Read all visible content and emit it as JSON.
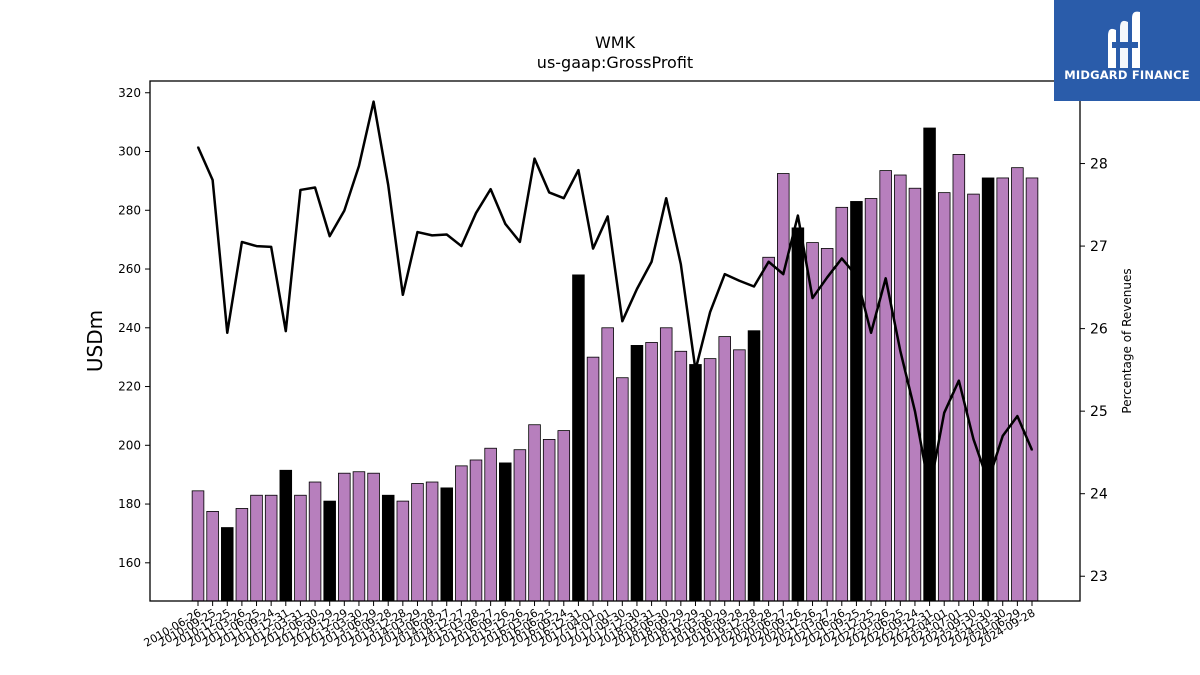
{
  "logo": {
    "text": "MIDGARD FINANCE"
  },
  "colors": {
    "bar": "#b77fbd",
    "bar_highlight": "#000000",
    "line": "#000000",
    "logo_bg": "#2a5caa"
  },
  "chart_data": {
    "type": "bar",
    "title": "WMK",
    "subtitle": "us-gaap:GrossProfit",
    "ylabel": "USDm",
    "y2label": "Percentage of Revenues",
    "ylim": [
      147,
      324
    ],
    "y2lim": [
      22.7,
      29.0
    ],
    "yticks": [
      160,
      180,
      200,
      220,
      240,
      260,
      280,
      300,
      320
    ],
    "y2ticks": [
      23,
      24,
      25,
      26,
      27,
      28
    ],
    "categories": [
      "2010-06-26",
      "2010-09-25",
      "2010-12-25",
      "2011-03-26",
      "2011-06-25",
      "2011-09-24",
      "2011-12-31",
      "2012-03-31",
      "2012-06-30",
      "2012-09-29",
      "2012-12-29",
      "2013-03-30",
      "2013-06-29",
      "2013-09-28",
      "2013-12-28",
      "2014-03-29",
      "2014-06-28",
      "2014-09-27",
      "2014-12-27",
      "2015-03-28",
      "2015-06-27",
      "2015-09-26",
      "2015-12-26",
      "2016-03-26",
      "2016-06-25",
      "2016-09-24",
      "2016-12-31",
      "2017-04-01",
      "2017-07-01",
      "2017-09-30",
      "2017-12-30",
      "2018-03-31",
      "2018-06-30",
      "2018-09-29",
      "2018-12-29",
      "2019-03-30",
      "2019-06-29",
      "2019-09-28",
      "2019-12-28",
      "2020-03-28",
      "2020-06-27",
      "2020-09-26",
      "2020-12-26",
      "2021-03-27",
      "2021-06-26",
      "2021-09-25",
      "2021-12-25",
      "2022-03-26",
      "2022-06-25",
      "2022-09-24",
      "2022-12-31",
      "2023-04-01",
      "2023-07-01",
      "2023-09-30",
      "2023-12-30",
      "2024-03-30",
      "2024-06-29",
      "2024-09-28"
    ],
    "series": [
      {
        "values": [
          184.5,
          177.5,
          172,
          178.5,
          183,
          183,
          191.5,
          183,
          187.5,
          181,
          190.5,
          191,
          190.5,
          183,
          181,
          187,
          187.5,
          185.5,
          193,
          195,
          199,
          194,
          198.5,
          207,
          202,
          205,
          258,
          230,
          240,
          223,
          234,
          235,
          240,
          232,
          227.5,
          229.5,
          237,
          232.5,
          239,
          264,
          292.5,
          274,
          269,
          267,
          281,
          283,
          284,
          293.5,
          292,
          287.5,
          308,
          286,
          299,
          285.5,
          291,
          291,
          294.5,
          291
        ]
      },
      {
        "values": [
          28.2,
          27.8,
          25.95,
          27.05,
          27.0,
          26.99,
          25.97,
          27.68,
          27.71,
          27.12,
          27.43,
          27.97,
          28.75,
          27.74,
          26.41,
          27.17,
          27.13,
          27.14,
          27.0,
          27.4,
          27.69,
          27.27,
          27.05,
          28.06,
          27.65,
          27.58,
          27.92,
          26.97,
          27.36,
          26.09,
          26.48,
          26.81,
          27.58,
          26.78,
          25.5,
          26.2,
          26.66,
          26.58,
          26.51,
          26.81,
          26.66,
          27.37,
          26.37,
          26.62,
          26.85,
          26.64,
          25.95,
          26.61,
          25.73,
          25.0,
          24.04,
          24.98,
          25.37,
          24.66,
          24.15,
          24.7,
          24.94,
          24.53
        ]
      }
    ],
    "highlighted": [
      "2010-12-25",
      "2011-12-31",
      "2012-09-29",
      "2013-09-28",
      "2014-09-27",
      "2015-09-26",
      "2016-12-31",
      "2017-12-30",
      "2018-12-29",
      "2019-12-28",
      "2020-09-26",
      "2021-09-25",
      "2022-12-31",
      "2023-12-30"
    ],
    "grid": false,
    "legend": "none"
  }
}
